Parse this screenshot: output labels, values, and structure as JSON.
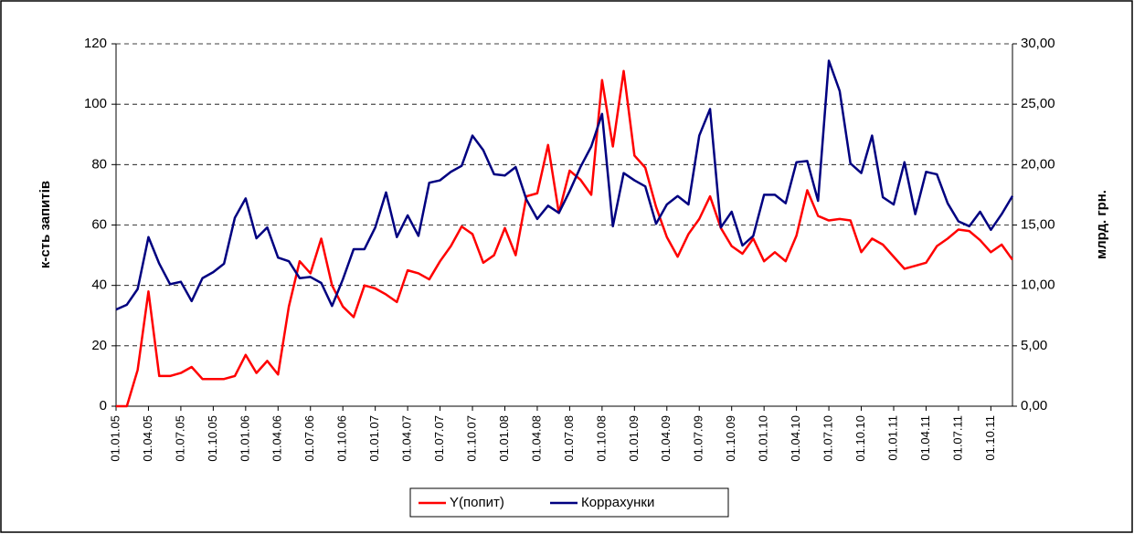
{
  "chart_data": {
    "type": "line",
    "categories": [
      "01.01.05",
      null,
      null,
      "01.04.05",
      null,
      null,
      "01.07.05",
      null,
      null,
      "01.10.05",
      null,
      null,
      "01.01.06",
      null,
      null,
      "01.04.06",
      null,
      null,
      "01.07.06",
      null,
      null,
      "01.10.06",
      null,
      null,
      "01.01.07",
      null,
      null,
      "01.04.07",
      null,
      null,
      "01.07.07",
      null,
      null,
      "01.10.07",
      null,
      null,
      "01.01.08",
      null,
      null,
      "01.04.08",
      null,
      null,
      "01.07.08",
      null,
      null,
      "01.10.08",
      null,
      null,
      "01.01.09",
      null,
      null,
      "01.04.09",
      null,
      null,
      "01.07.09",
      null,
      null,
      "01.10.09",
      null,
      null,
      "01.01.10",
      null,
      null,
      "01.04.10",
      null,
      null,
      "01.07.10",
      null,
      null,
      "01.10.10",
      null,
      null,
      "01.01.11",
      null,
      null,
      "01.04.11",
      null,
      null,
      "01.07.11",
      null,
      null,
      "01.10.11",
      null,
      null
    ],
    "series": [
      {
        "name": "Y(попит)",
        "color": "#ff0000",
        "axis": "y",
        "values": [
          0,
          0,
          12,
          38,
          10,
          10,
          11,
          13,
          9,
          9,
          9,
          10,
          17,
          11,
          15,
          10.5,
          33,
          48,
          44,
          55.5,
          40,
          33,
          29.5,
          40,
          39,
          37,
          34.5,
          45,
          44,
          42,
          48,
          53,
          59.5,
          57,
          47.5,
          50,
          59,
          50,
          69.5,
          70.5,
          86.5,
          64,
          78,
          75,
          70,
          108,
          86,
          111,
          83,
          79,
          66,
          56,
          49.5,
          57,
          62,
          69.5,
          59,
          53,
          50.5,
          55.5,
          48,
          51,
          48,
          56.5,
          71.5,
          63,
          61.5,
          62,
          61.5,
          51,
          55.5,
          53.5,
          49.5,
          45.5,
          46.5,
          47.5,
          53,
          55.5,
          58.5,
          58,
          55,
          51,
          53.5,
          48.5
        ]
      },
      {
        "name": "Коррахунки",
        "color": "#000080",
        "axis": "y2",
        "values": [
          8,
          8.4,
          9.7,
          14,
          11.8,
          10.1,
          10.3,
          8.7,
          10.6,
          11.1,
          11.8,
          15.6,
          17.2,
          13.9,
          14.8,
          12.3,
          12,
          10.6,
          10.7,
          10.2,
          8.3,
          10.5,
          13,
          13,
          14.8,
          17.7,
          14,
          15.8,
          14.1,
          18.5,
          18.7,
          19.4,
          19.9,
          22.4,
          21.2,
          19.2,
          19.1,
          19.8,
          17.1,
          15.5,
          16.6,
          16,
          17.8,
          19.8,
          21.5,
          24.2,
          14.9,
          19.3,
          18.7,
          18.2,
          15.1,
          16.7,
          17.4,
          16.7,
          22.4,
          24.6,
          14.8,
          16.1,
          13.3,
          14.1,
          17.5,
          17.5,
          16.8,
          20.2,
          20.3,
          17,
          28.6,
          26.1,
          20.1,
          19.3,
          22.4,
          17.3,
          16.7,
          20.2,
          15.9,
          19.4,
          19.2,
          16.8,
          15.3,
          14.9,
          16.1,
          14.6,
          15.9,
          17.4
        ]
      }
    ],
    "ylabel": "к-сть запитів",
    "y2label": "млрд. грн.",
    "ylim": [
      0,
      120
    ],
    "yticks": [
      0,
      20,
      40,
      60,
      80,
      100,
      120
    ],
    "y2lim": [
      0,
      30
    ],
    "y2ticks": [
      {
        "value": 0,
        "label": "0,00"
      },
      {
        "value": 5,
        "label": "5,00"
      },
      {
        "value": 10,
        "label": "10,00"
      },
      {
        "value": 15,
        "label": "15,00"
      },
      {
        "value": 20,
        "label": "20,00"
      },
      {
        "value": 25,
        "label": "25,00"
      },
      {
        "value": 30,
        "label": "30,00"
      }
    ],
    "grid": true,
    "legend": "bottom"
  }
}
